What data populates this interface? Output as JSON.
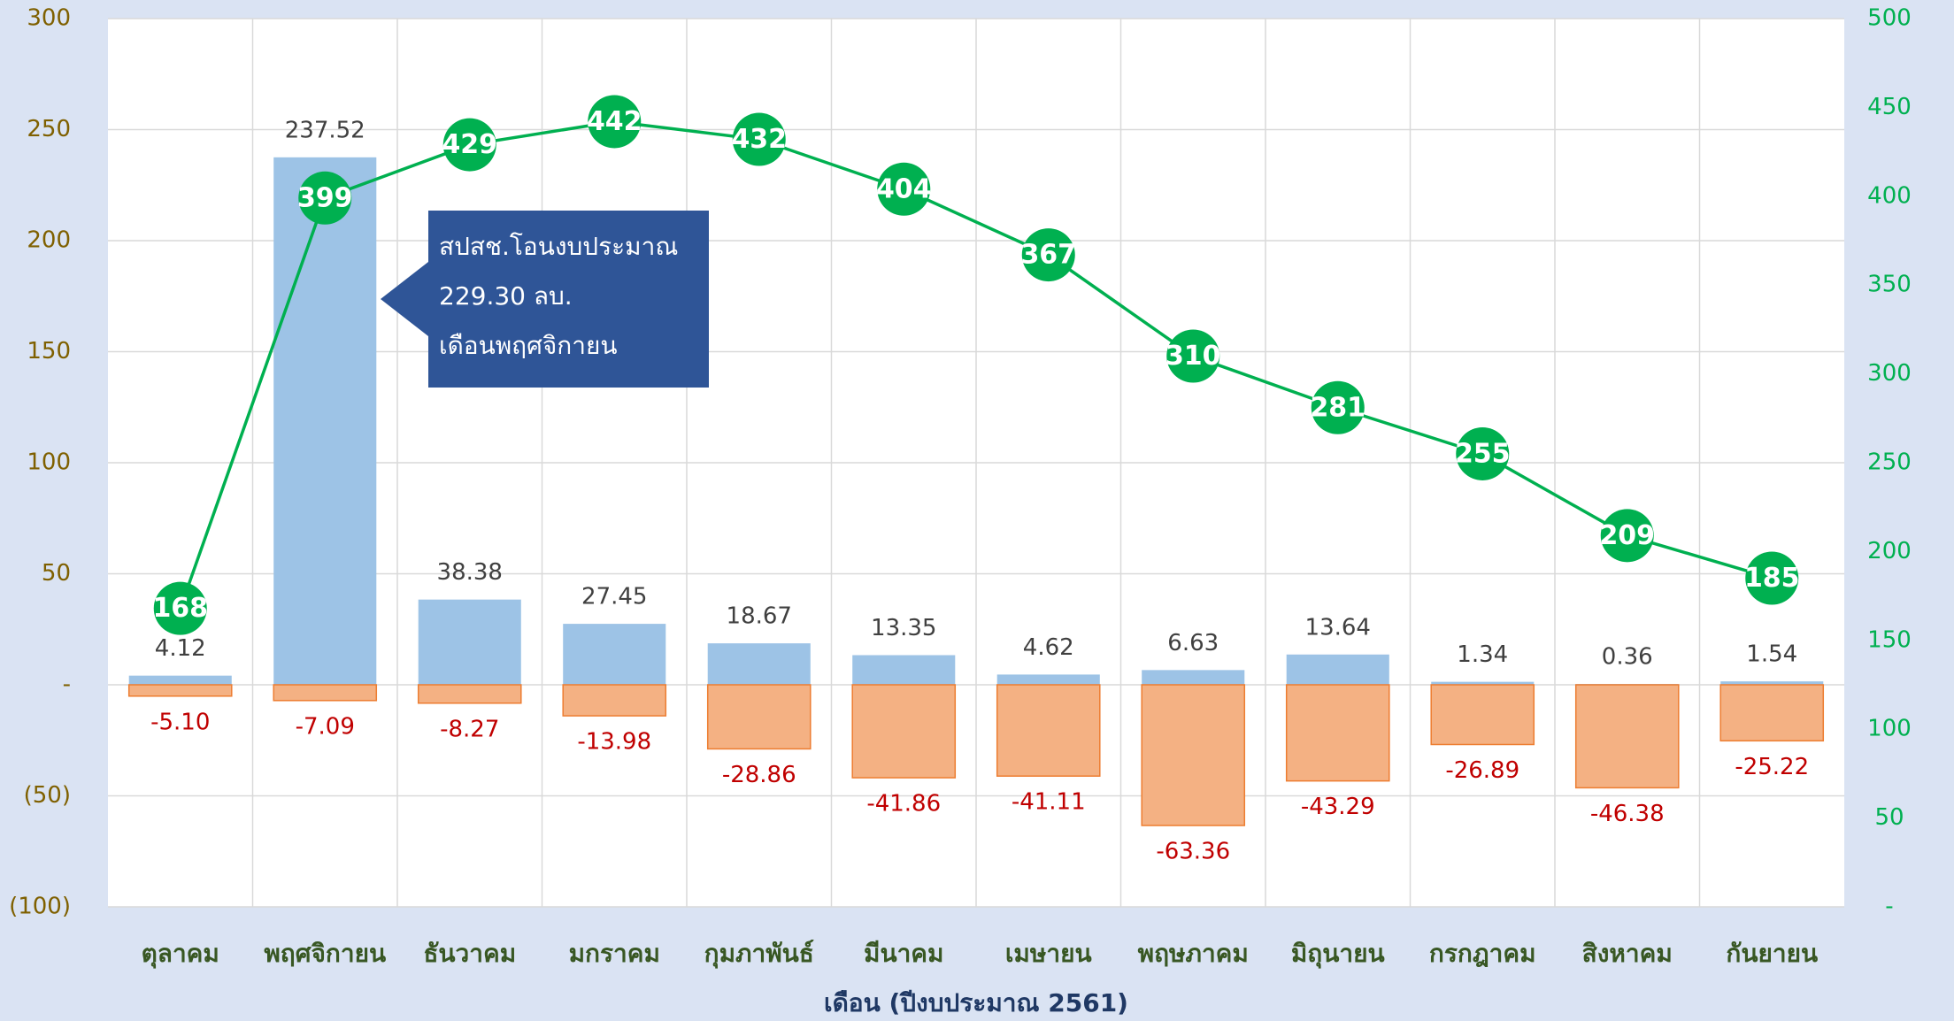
{
  "chart_data": {
    "type": "bar",
    "x_label": "เดือน (ปีงบประมาณ 2561)",
    "categories": [
      "ตุลาคม",
      "พฤศจิกายน",
      "ธันวาคม",
      "มกราคม",
      "กุมภาพันธ์",
      "มีนาคม",
      "เมษายน",
      "พฤษภาคม",
      "มิถุนายน",
      "กรกฎาคม",
      "สิงหาคม",
      "กันยายน"
    ],
    "series": [
      {
        "type": "bar",
        "color": "#9dc3e6",
        "values": [
          4.12,
          237.52,
          38.38,
          27.45,
          18.67,
          13.35,
          4.62,
          6.63,
          13.64,
          1.34,
          0.36,
          1.54
        ]
      },
      {
        "type": "bar",
        "color": "#f4b183",
        "values": [
          -5.1,
          -7.09,
          -8.27,
          -13.98,
          -28.86,
          -41.86,
          -41.11,
          -63.36,
          -43.29,
          -26.89,
          -46.38,
          -25.22
        ],
        "value_labels": [
          "-5.10",
          "-7.09",
          "-8.27",
          "-13.98",
          "-28.86",
          "-41.86",
          "-41.11",
          "-63.36",
          "-43.29",
          "-26.89",
          "-46.38",
          "-25.22"
        ]
      },
      {
        "type": "line",
        "axis": "y2",
        "color": "#00b050",
        "values": [
          168,
          399,
          429,
          442,
          432,
          404,
          367,
          310,
          281,
          255,
          209,
          185
        ]
      }
    ],
    "ylim": [
      -100,
      300
    ],
    "yticks": [
      300,
      250,
      200,
      150,
      100,
      50,
      {
        "value": 0,
        "label": "-"
      },
      {
        "value": -50,
        "label": "(50)"
      },
      {
        "value": -100,
        "label": "(100)"
      }
    ],
    "y2lim": [
      0,
      500
    ],
    "y2ticks": [
      500,
      450,
      400,
      350,
      300,
      250,
      200,
      150,
      100,
      50,
      {
        "value": 0,
        "label": "-"
      }
    ],
    "grid": true,
    "annotation": [
      "สปสช.โอนงบประมาณ",
      "229.30 ลบ.",
      "เดือนพฤศจิกายน"
    ]
  }
}
